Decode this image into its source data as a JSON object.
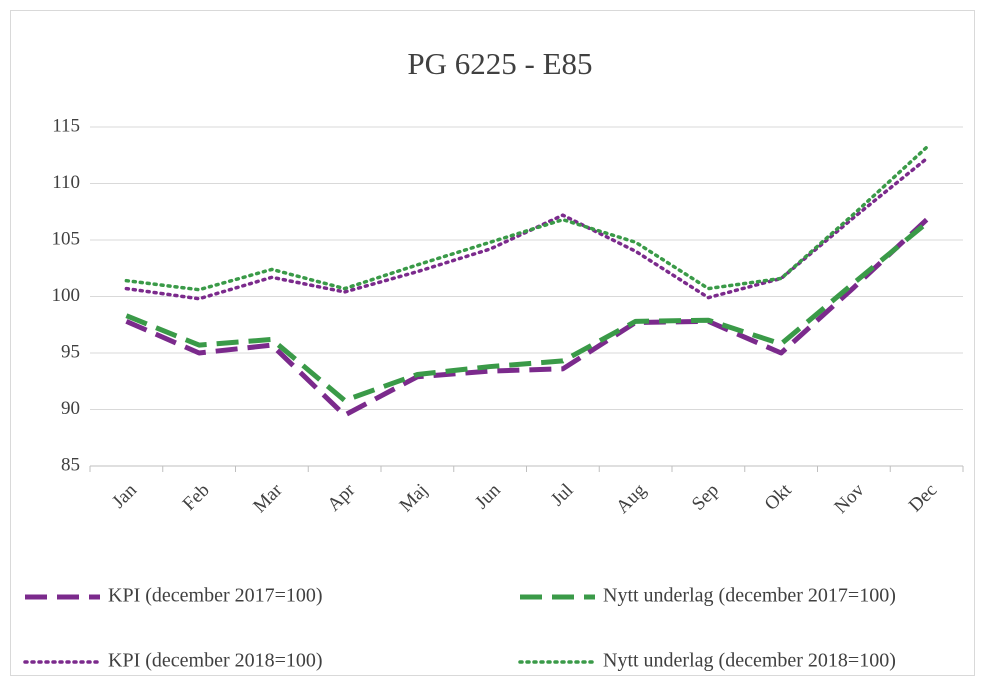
{
  "chart_data": {
    "type": "line",
    "title": "PG 6225 - E85",
    "categories": [
      "Jan",
      "Feb",
      "Mar",
      "Apr",
      "Maj",
      "Jun",
      "Jul",
      "Aug",
      "Sep",
      "Okt",
      "Nov",
      "Dec"
    ],
    "series": [
      {
        "name": "KPI (december 2017=100)",
        "color": "#7b2a8c",
        "line_style": "dashed",
        "values": [
          97.8,
          95.0,
          95.7,
          89.5,
          92.9,
          93.4,
          93.6,
          97.7,
          97.8,
          95.0,
          100.8,
          106.8
        ]
      },
      {
        "name": "Nytt underlag (december 2017=100)",
        "color": "#3a9a48",
        "line_style": "dashed",
        "values": [
          98.3,
          95.7,
          96.2,
          90.8,
          93.1,
          93.8,
          94.3,
          97.8,
          97.9,
          95.8,
          101.2,
          106.5
        ]
      },
      {
        "name": "KPI (december 2018=100)",
        "color": "#7b2a8c",
        "line_style": "dotted",
        "values": [
          100.7,
          99.8,
          101.7,
          100.4,
          102.2,
          104.2,
          107.2,
          104.0,
          99.9,
          101.6,
          107.0,
          112.2
        ]
      },
      {
        "name": "Nytt underlag (december 2018=100)",
        "color": "#3a9a48",
        "line_style": "dotted",
        "values": [
          101.4,
          100.6,
          102.4,
          100.7,
          102.8,
          104.8,
          106.8,
          104.8,
          100.7,
          101.6,
          107.3,
          113.2
        ]
      }
    ],
    "ylim": [
      85,
      115
    ],
    "yticks": [
      85,
      90,
      95,
      100,
      105,
      110,
      115
    ],
    "grid": true,
    "legend": "bottom"
  }
}
